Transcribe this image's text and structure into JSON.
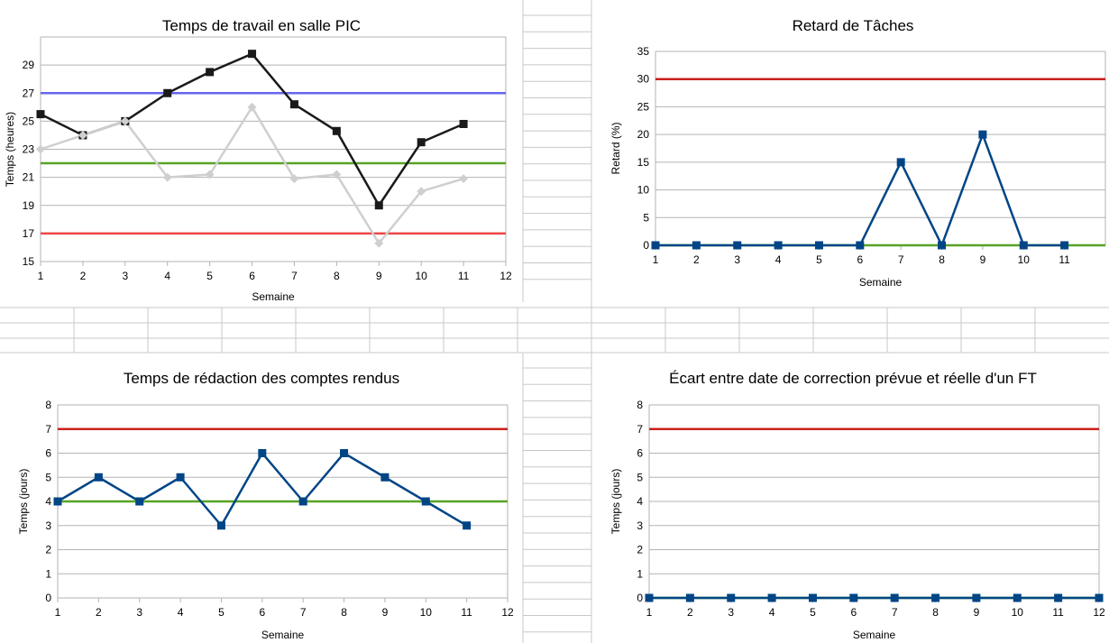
{
  "chart_data": [
    {
      "type": "line",
      "title": "Temps de travail en salle PIC",
      "xlabel": "Semaine",
      "ylabel": "Temps (heures)",
      "xlim": [
        1,
        12
      ],
      "xticks": [
        1,
        2,
        3,
        4,
        5,
        6,
        7,
        8,
        9,
        10,
        11,
        12
      ],
      "ylim": [
        15,
        31
      ],
      "yticks": [
        15,
        17,
        19,
        21,
        23,
        25,
        27,
        29
      ],
      "grid": true,
      "legend": "none",
      "series": [
        {
          "color": "#1a1a1a",
          "marker": "square",
          "x": [
            1,
            2,
            3,
            4,
            5,
            6,
            7,
            8,
            9,
            10,
            11
          ],
          "y": [
            25.5,
            24,
            25,
            27,
            28.5,
            29.8,
            26.2,
            24.3,
            19,
            23.5,
            24.8
          ]
        },
        {
          "color": "#cfcfcf",
          "marker": "diamond",
          "x": [
            1,
            2,
            3,
            4,
            5,
            6,
            7,
            8,
            9,
            10,
            11
          ],
          "y": [
            23,
            24,
            25,
            21,
            21.2,
            26,
            20.9,
            21.2,
            16.3,
            20,
            20.9
          ]
        },
        {
          "color": "#6666ee",
          "marker": "none",
          "x": [
            1,
            12
          ],
          "y": [
            27,
            27
          ]
        },
        {
          "color": "#56a324",
          "marker": "none",
          "x": [
            1,
            12
          ],
          "y": [
            22,
            22
          ]
        },
        {
          "color": "#ee4444",
          "marker": "none",
          "x": [
            1,
            12
          ],
          "y": [
            17,
            17
          ]
        }
      ]
    },
    {
      "type": "line",
      "title": "Retard de Tâches",
      "xlabel": "Semaine",
      "ylabel": "Retard (%)",
      "xlim": [
        1,
        12
      ],
      "xticks": [
        1,
        2,
        3,
        4,
        5,
        6,
        7,
        8,
        9,
        10,
        11
      ],
      "ylim": [
        0,
        35
      ],
      "yticks": [
        0,
        5,
        10,
        15,
        20,
        25,
        30,
        35
      ],
      "grid": true,
      "legend": "none",
      "series": [
        {
          "color": "#004586",
          "marker": "square",
          "x": [
            1,
            2,
            3,
            4,
            5,
            6,
            7,
            8,
            9,
            10,
            11
          ],
          "y": [
            0,
            0,
            0,
            0,
            0,
            0,
            15,
            0,
            20,
            0,
            0
          ]
        },
        {
          "color": "#56a324",
          "marker": "none",
          "x": [
            1,
            12
          ],
          "y": [
            0,
            0
          ]
        },
        {
          "color": "#c9211e",
          "marker": "none",
          "x": [
            1,
            12
          ],
          "y": [
            30,
            30
          ]
        }
      ]
    },
    {
      "type": "line",
      "title": "Temps de rédaction des comptes rendus",
      "xlabel": "Semaine",
      "ylabel": "Temps (jours)",
      "xlim": [
        1,
        12
      ],
      "xticks": [
        1,
        2,
        3,
        4,
        5,
        6,
        7,
        8,
        9,
        10,
        11,
        12
      ],
      "ylim": [
        0,
        8
      ],
      "yticks": [
        0,
        1,
        2,
        3,
        4,
        5,
        6,
        7,
        8
      ],
      "grid": true,
      "legend": "none",
      "series": [
        {
          "color": "#004586",
          "marker": "square",
          "x": [
            1,
            2,
            3,
            4,
            5,
            6,
            7,
            8,
            9,
            10,
            11
          ],
          "y": [
            4,
            5,
            4,
            5,
            3,
            6,
            4,
            6,
            5,
            4,
            3
          ]
        },
        {
          "color": "#56a324",
          "marker": "none",
          "x": [
            1,
            12
          ],
          "y": [
            4,
            4
          ]
        },
        {
          "color": "#c9211e",
          "marker": "none",
          "x": [
            1,
            12
          ],
          "y": [
            7,
            7
          ]
        }
      ]
    },
    {
      "type": "line",
      "title": "Écart entre date de correction prévue et réelle d'un FT",
      "xlabel": "Semaine",
      "ylabel": "Temps (jours)",
      "xlim": [
        1,
        12
      ],
      "xticks": [
        1,
        2,
        3,
        4,
        5,
        6,
        7,
        8,
        9,
        10,
        11,
        12
      ],
      "ylim": [
        0,
        8
      ],
      "yticks": [
        0,
        1,
        2,
        3,
        4,
        5,
        6,
        7,
        8
      ],
      "grid": true,
      "legend": "none",
      "series": [
        {
          "color": "#004586",
          "marker": "square",
          "x": [
            1,
            2,
            3,
            4,
            5,
            6,
            7,
            8,
            9,
            10,
            11,
            12
          ],
          "y": [
            0,
            0,
            0,
            0,
            0,
            0,
            0,
            0,
            0,
            0,
            0,
            0
          ]
        },
        {
          "color": "#56a324",
          "marker": "none",
          "x": [
            1,
            12
          ],
          "y": [
            0,
            0
          ]
        },
        {
          "color": "#c9211e",
          "marker": "none",
          "x": [
            1,
            12
          ],
          "y": [
            7,
            7
          ]
        }
      ]
    }
  ]
}
